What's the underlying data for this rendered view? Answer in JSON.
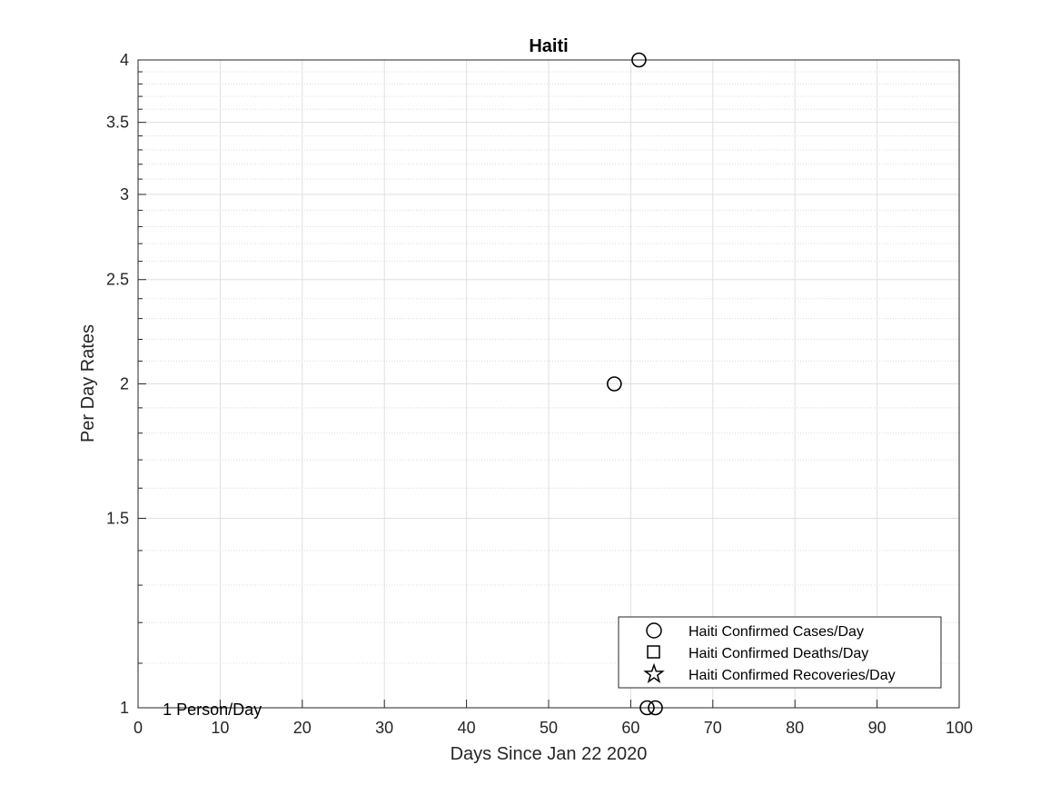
{
  "chart_data": {
    "type": "scatter",
    "title": "Haiti",
    "xlabel": "Days Since Jan 22 2020",
    "ylabel": "Per Day Rates",
    "xlim": [
      0,
      100
    ],
    "ylim": [
      1,
      4
    ],
    "yscale": "log",
    "grid": true,
    "minor_grid": true,
    "x_ticks": [
      0,
      10,
      20,
      30,
      40,
      50,
      60,
      70,
      80,
      90,
      100
    ],
    "y_ticks": [
      1,
      1.5,
      2,
      2.5,
      3,
      3.5,
      4
    ],
    "y_tick_labels": [
      "1",
      "1.5",
      "2",
      "2.5",
      "3",
      "3.5",
      "4"
    ],
    "legend_position": "bottom-right",
    "series": [
      {
        "name": "Haiti Confirmed Cases/Day",
        "marker": "circle",
        "x": [
          58,
          61,
          62,
          63
        ],
        "y": [
          2,
          4,
          1,
          1
        ]
      },
      {
        "name": "Haiti Confirmed Deaths/Day",
        "marker": "square",
        "x": [],
        "y": []
      },
      {
        "name": "Haiti Confirmed Recoveries/Day",
        "marker": "star",
        "x": [],
        "y": []
      }
    ],
    "annotations": [
      {
        "text": "1 Person/Day",
        "x": 3,
        "y": 1
      }
    ]
  }
}
